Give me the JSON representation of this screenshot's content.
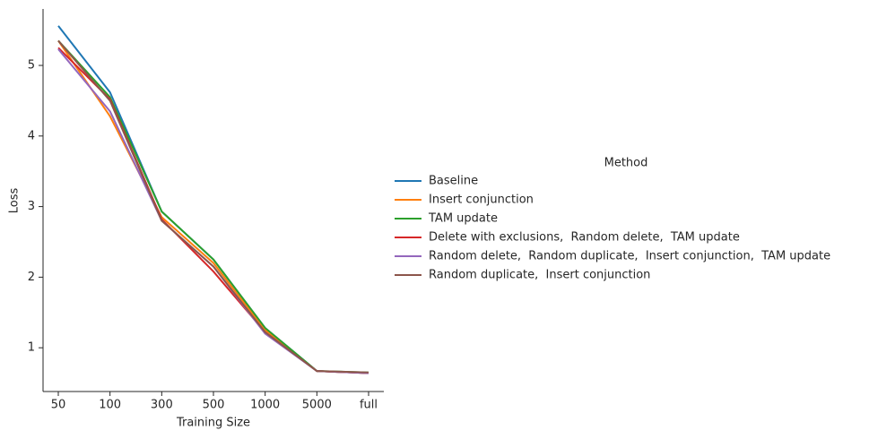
{
  "chart_data": {
    "type": "line",
    "x_label": "Training Size",
    "y_label": "Loss",
    "legend_title": "Method",
    "categories": [
      "50",
      "100",
      "300",
      "500",
      "1000",
      "5000",
      "full"
    ],
    "series": [
      {
        "name": "Baseline",
        "color": "#1f77b4",
        "values": [
          5.56,
          4.62,
          2.93,
          2.25,
          1.28,
          0.67,
          0.64
        ]
      },
      {
        "name": "Insert conjunction",
        "color": "#ff7f0e",
        "values": [
          5.35,
          4.28,
          2.85,
          2.2,
          1.25,
          0.67,
          0.64
        ]
      },
      {
        "name": "TAM update",
        "color": "#2ca02c",
        "values": [
          5.35,
          4.55,
          2.93,
          2.25,
          1.28,
          0.67,
          0.65
        ]
      },
      {
        "name": "Delete with exclusions,  Random delete,  TAM update",
        "color": "#d62728",
        "values": [
          5.25,
          4.52,
          2.82,
          2.08,
          1.22,
          0.67,
          0.64
        ]
      },
      {
        "name": "Random delete,  Random duplicate,  Insert conjunction,  TAM update",
        "color": "#9467bd",
        "values": [
          5.23,
          4.35,
          2.8,
          2.15,
          1.2,
          0.67,
          0.64
        ]
      },
      {
        "name": "Random duplicate,  Insert conjunction",
        "color": "#8c564b",
        "values": [
          5.35,
          4.5,
          2.8,
          2.15,
          1.22,
          0.67,
          0.65
        ]
      }
    ],
    "ylim": [
      0.38,
      5.8
    ],
    "yticks": [
      1,
      2,
      3,
      4,
      5
    ],
    "grid": false,
    "legend": "right"
  }
}
